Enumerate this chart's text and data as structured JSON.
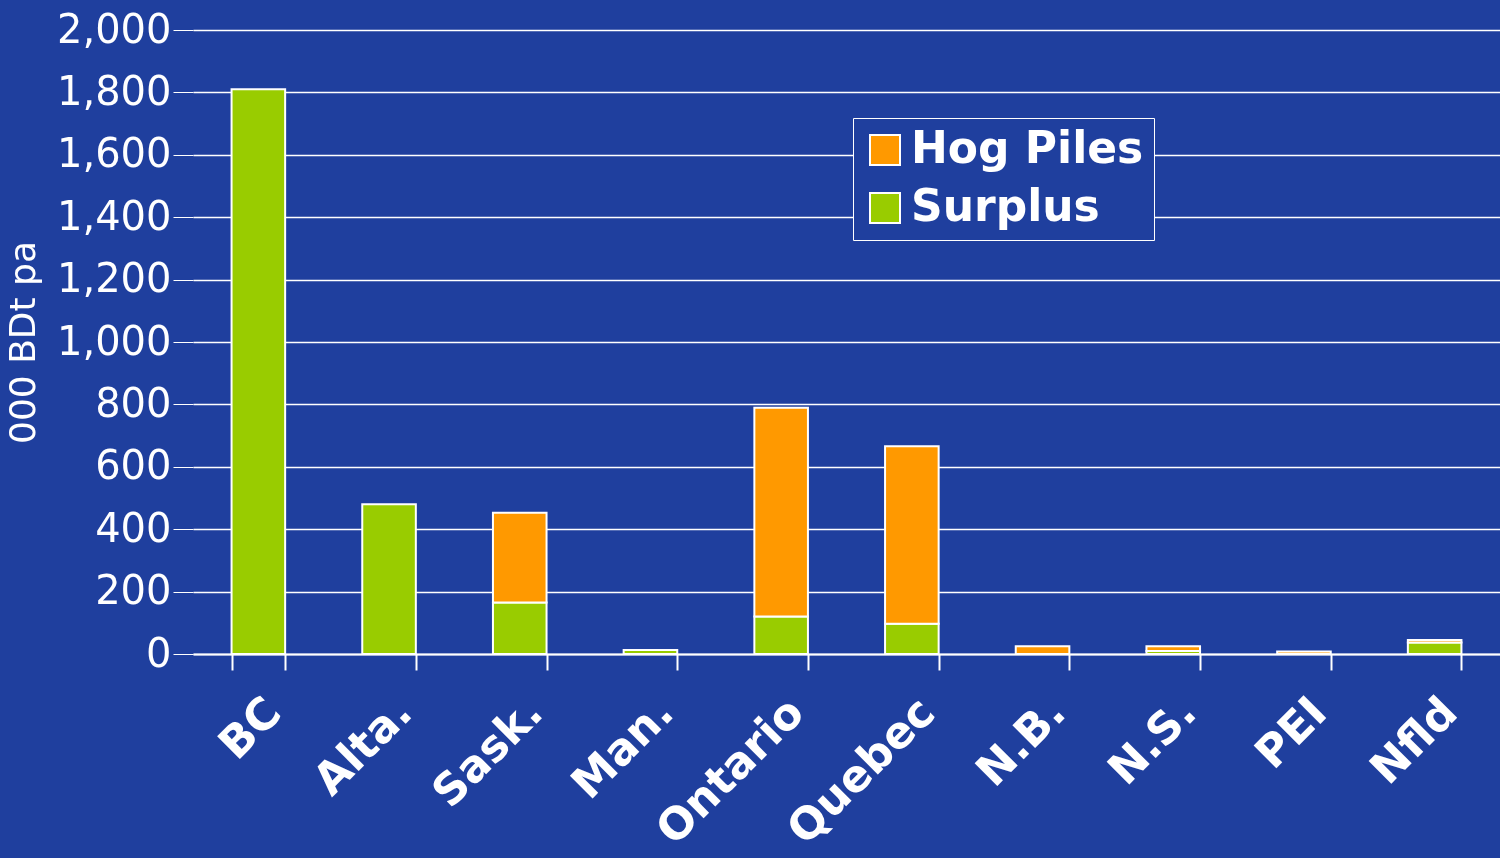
{
  "chart_data": {
    "type": "bar",
    "ylabel": "000 BDt pa",
    "categories": [
      "BC",
      "Alta.",
      "Sask.",
      "Man.",
      "Ontario",
      "Quebec",
      "N.B.",
      "N.S.",
      "PEI",
      "Nfld"
    ],
    "stacked": true,
    "series": [
      {
        "name": "Surplus",
        "color": "#99cc00",
        "values": [
          1810,
          480,
          165,
          13,
          120,
          97,
          null,
          10,
          null,
          37
        ]
      },
      {
        "name": "Hog Piles",
        "color": "#ff9900",
        "values": [
          null,
          null,
          288,
          null,
          669,
          569,
          25,
          15,
          8,
          8
        ]
      }
    ],
    "ylim": [
      0,
      2000
    ],
    "yticks": [
      0,
      200,
      400,
      600,
      800,
      {
        "value": 1000,
        "label": "1,000"
      },
      {
        "value": 1200,
        "label": "1,200"
      },
      {
        "value": 1400,
        "label": "1,400"
      },
      {
        "value": 1600,
        "label": "1,600"
      },
      {
        "value": 1800,
        "label": "1,800"
      },
      {
        "value": 2000,
        "label": "2,000"
      }
    ],
    "grid": "y",
    "legend": "top right"
  }
}
